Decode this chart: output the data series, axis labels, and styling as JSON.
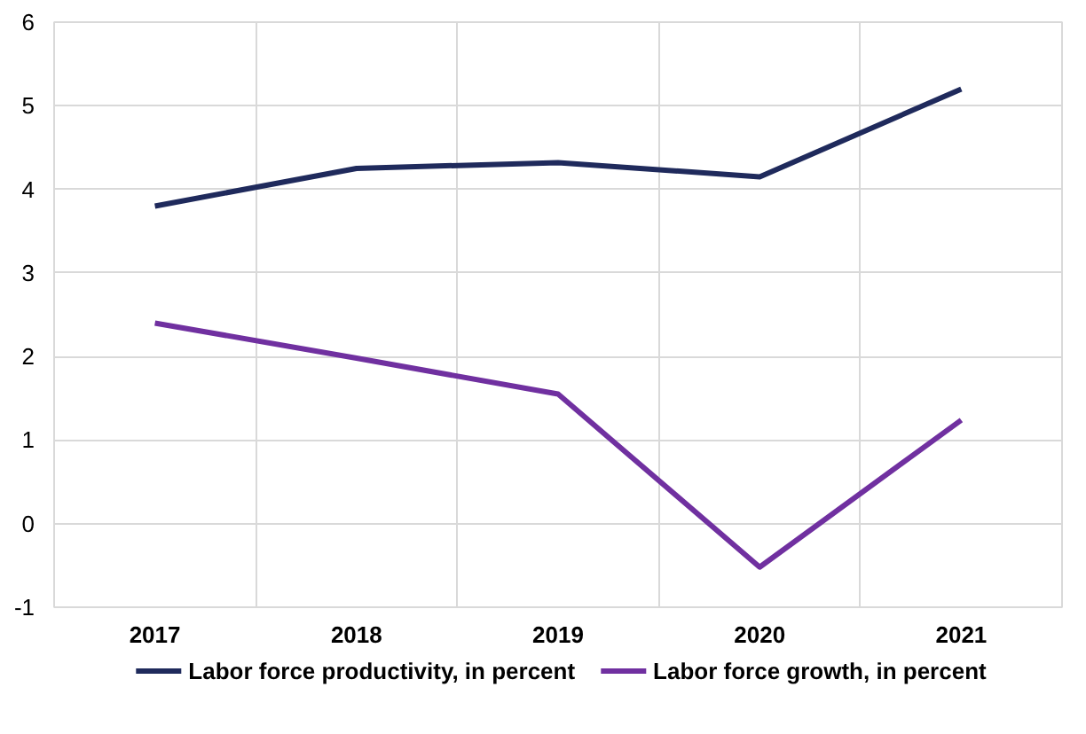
{
  "chart_data": {
    "type": "line",
    "categories": [
      "2017",
      "2018",
      "2019",
      "2020",
      "2021"
    ],
    "series": [
      {
        "name": "Labor force productivity, in percent",
        "color": "#1f2a5c",
        "values": [
          3.8,
          4.25,
          4.32,
          4.15,
          5.2
        ]
      },
      {
        "name": "Labor force growth, in percent",
        "color": "#7030a0",
        "values": [
          2.4,
          1.98,
          1.55,
          -0.52,
          1.24
        ]
      }
    ],
    "ylim": [
      -1,
      6
    ],
    "yticks": [
      -1,
      0,
      1,
      2,
      3,
      4,
      5,
      6
    ],
    "grid": true,
    "legend": "bottom",
    "line_style": "solid"
  }
}
